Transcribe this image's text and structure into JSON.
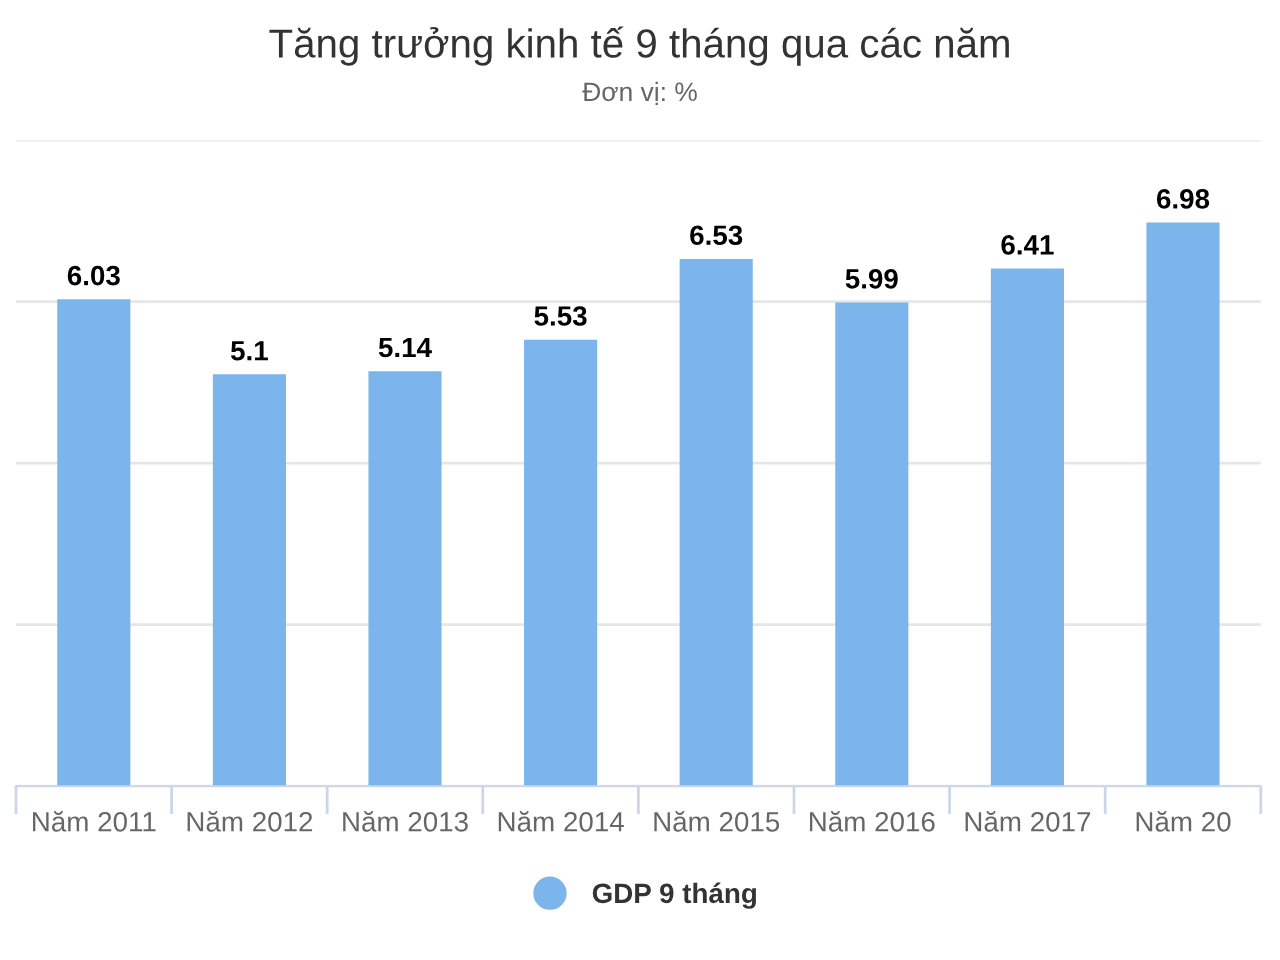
{
  "chart_data": {
    "type": "bar",
    "title": "Tăng trưởng kinh tế 9 tháng qua các năm",
    "subtitle": "Đơn vị: %",
    "categories": [
      "Năm 2011",
      "Năm 2012",
      "Năm 2013",
      "Năm 2014",
      "Năm 2015",
      "Năm 2016",
      "Năm 2017",
      "Năm 20"
    ],
    "series": [
      {
        "name": "GDP 9 tháng",
        "color": "#7cb5ec",
        "values": [
          6.03,
          5.1,
          5.14,
          5.53,
          6.53,
          5.99,
          6.41,
          6.98
        ]
      }
    ],
    "ylim": [
      0,
      8
    ],
    "yticks": [
      {
        "value": 0,
        "label": null
      },
      {
        "value": 2,
        "label": null
      },
      {
        "value": 4,
        "label": null
      },
      {
        "value": 6,
        "label": null
      },
      {
        "value": 8,
        "label": null
      }
    ],
    "tick_labels": "x",
    "grid": "y",
    "legend": "bottom",
    "marker": "circle",
    "data_labels": true
  }
}
